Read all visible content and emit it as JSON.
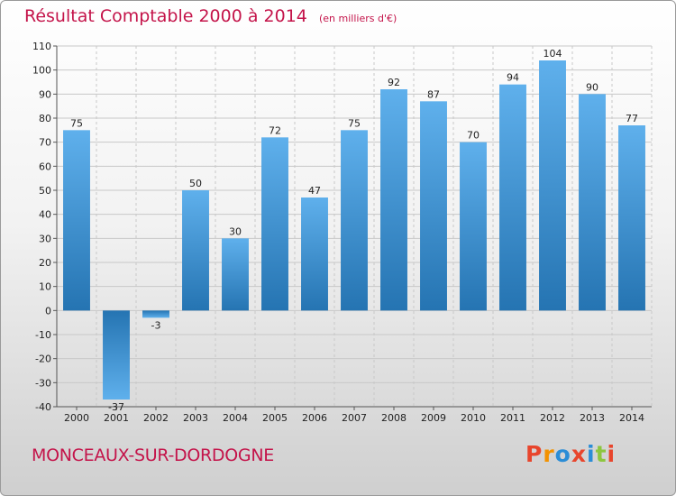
{
  "chart_data": {
    "type": "bar",
    "title": "Résultat Comptable 2000 à 2014",
    "unit_label": "(en milliers d'€)",
    "categories": [
      "2000",
      "2001",
      "2002",
      "2003",
      "2004",
      "2005",
      "2006",
      "2007",
      "2008",
      "2009",
      "2010",
      "2011",
      "2012",
      "2013",
      "2014"
    ],
    "values": [
      75,
      -37,
      -3,
      50,
      30,
      72,
      47,
      75,
      92,
      87,
      70,
      94,
      104,
      90,
      77
    ],
    "ylim": [
      -40,
      110
    ],
    "yticks": [
      -40,
      -30,
      -20,
      -10,
      0,
      10,
      20,
      30,
      40,
      50,
      60,
      70,
      80,
      90,
      100,
      110
    ],
    "grid": true,
    "xlabel": "",
    "ylabel": ""
  },
  "footer": {
    "commune": "MONCEAUX-SUR-DORDOGNE",
    "brand": "Proxiti"
  },
  "colors": {
    "accent": "#c4144a",
    "bar_light": "#5daeea",
    "bar_dark": "#2676b4",
    "brand_letters": [
      "#e8452c",
      "#f39200",
      "#2b8dd6",
      "#e8452c",
      "#2b8dd6",
      "#8dc63f",
      "#e8452c"
    ]
  }
}
